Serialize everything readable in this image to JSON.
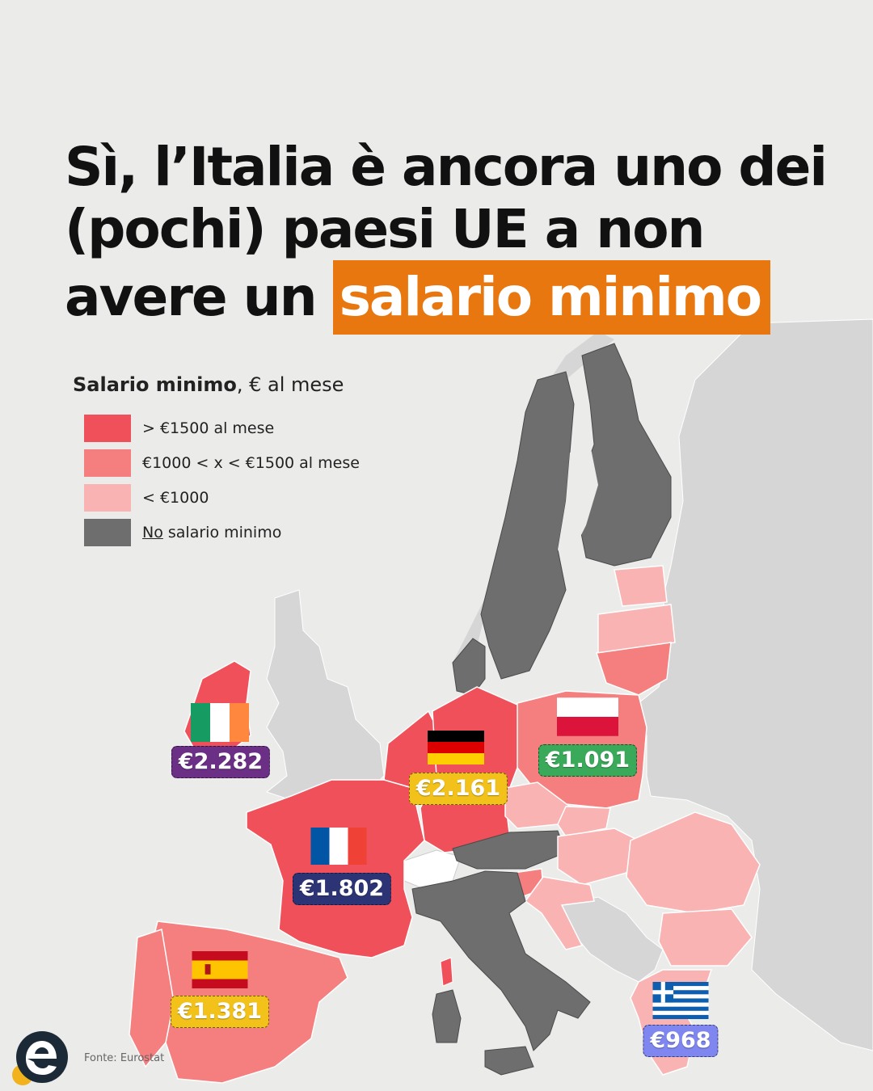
{
  "title": {
    "line1": "Sì, l’Italia è ancora uno dei",
    "line2": "(pochi) paesi UE a non",
    "line3_prefix": "avere un ",
    "line3_highlight": "salario minimo"
  },
  "legend": {
    "title_bold": "Salario minimo",
    "title_rest": ", € al mese",
    "items": [
      {
        "label": "> €1500 al mese",
        "color": "#f0505a"
      },
      {
        "label": "€1000 < x < €1500 al mese",
        "color": "#f57f7f"
      },
      {
        "label": "< €1000",
        "color": "#f9b3b3"
      },
      {
        "label_underlined": "No",
        "label_rest": " salario minimo",
        "color": "#6e6e6e"
      }
    ]
  },
  "countries": {
    "ireland": {
      "value": "€2.282",
      "tag_color": "#6b2f86",
      "flag": "ireland-flag"
    },
    "germany": {
      "value": "€2.161",
      "tag_color": "#f2c21b",
      "flag": "germany-flag"
    },
    "poland": {
      "value": "€1.091",
      "tag_color": "#3aa95a",
      "flag": "poland-flag"
    },
    "france": {
      "value": "€1.802",
      "tag_color": "#2d3476",
      "flag": "france-flag"
    },
    "spain": {
      "value": "€1.381",
      "tag_color": "#f2c21b",
      "flag": "spain-flag"
    },
    "greece": {
      "value": "€968",
      "tag_color": "#7f86f0",
      "flag": "greece-flag"
    }
  },
  "colors": {
    "highlight": "#e8770f",
    "no_wage": "#6e6e6e",
    "non_eu": "#d6d6d6",
    "background": "#ebebea"
  },
  "source": "Fonte: Eurostat",
  "logo_icon": "e-logo-icon"
}
